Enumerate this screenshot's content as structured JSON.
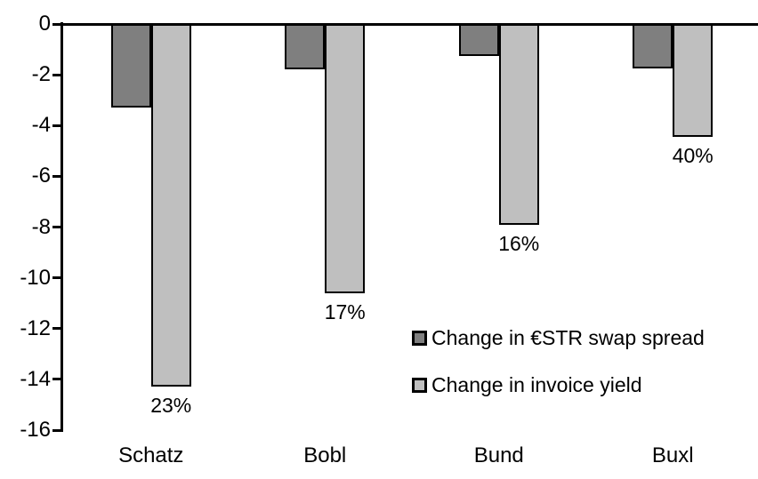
{
  "chart_data": {
    "type": "bar",
    "orientation": "vertical-negative",
    "categories": [
      "Schatz",
      "Bobl",
      "Bund",
      "Buxl"
    ],
    "series": [
      {
        "name": "Change in €STR swap spread",
        "color": "#7f7f7f",
        "values": [
          -3.3,
          -1.8,
          -1.25,
          -1.75
        ]
      },
      {
        "name": "Change in invoice yield",
        "color": "#bfbfbf",
        "values": [
          -14.3,
          -10.6,
          -7.9,
          -4.45
        ],
        "point_labels": [
          "23%",
          "17%",
          "16%",
          "40%"
        ]
      }
    ],
    "title": "",
    "xlabel": "",
    "ylabel": "",
    "ylim": [
      -16,
      0
    ],
    "yticks": [
      0,
      -2,
      -4,
      -6,
      -8,
      -10,
      -12,
      -14,
      -16
    ],
    "grid": false,
    "legend_position": "inside-center-right",
    "bar_border_color": "#000000",
    "axis_color": "#000000",
    "background_color": "#ffffff"
  }
}
